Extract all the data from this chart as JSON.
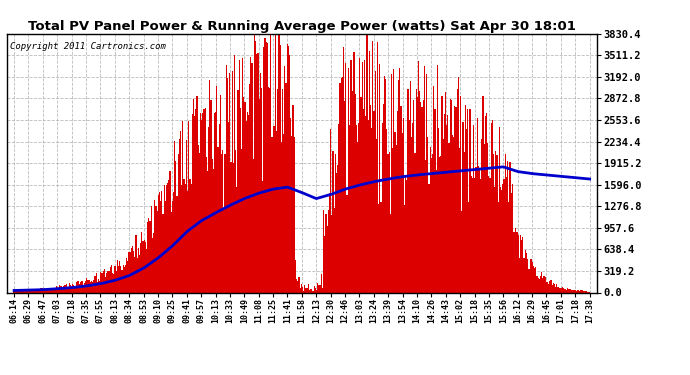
{
  "title": "Total PV Panel Power & Running Average Power (watts) Sat Apr 30 18:01",
  "copyright": "Copyright 2011 Cartronics.com",
  "background_color": "#ffffff",
  "plot_bg_color": "#ffffff",
  "grid_color": "#aaaaaa",
  "ytick_labels": [
    "0.0",
    "319.2",
    "638.4",
    "957.6",
    "1276.8",
    "1596.0",
    "1915.2",
    "2234.4",
    "2553.6",
    "2872.8",
    "3192.0",
    "3511.2",
    "3830.4"
  ],
  "ytick_values": [
    0.0,
    319.2,
    638.4,
    957.6,
    1276.8,
    1596.0,
    1915.2,
    2234.4,
    2553.6,
    2872.8,
    3192.0,
    3511.2,
    3830.4
  ],
  "ymax": 3830.4,
  "ymin": 0.0,
  "bar_color": "#dd0000",
  "avg_color": "#0000cc",
  "avg_linewidth": 2.0,
  "xtick_labels": [
    "06:14",
    "06:29",
    "06:47",
    "07:03",
    "07:18",
    "07:35",
    "07:55",
    "08:13",
    "08:34",
    "08:53",
    "09:10",
    "09:25",
    "09:41",
    "09:57",
    "10:13",
    "10:33",
    "10:49",
    "11:08",
    "11:25",
    "11:41",
    "11:58",
    "12:13",
    "12:30",
    "12:46",
    "13:03",
    "13:24",
    "13:39",
    "13:54",
    "14:10",
    "14:26",
    "14:43",
    "15:02",
    "15:18",
    "15:35",
    "15:56",
    "16:12",
    "16:29",
    "16:45",
    "17:01",
    "17:18",
    "17:38"
  ],
  "pv_envelope": [
    30,
    45,
    60,
    90,
    130,
    180,
    280,
    420,
    600,
    900,
    1400,
    1900,
    2400,
    2700,
    2900,
    3100,
    3300,
    3500,
    3700,
    3600,
    800,
    300,
    2800,
    3200,
    3400,
    3300,
    3200,
    3100,
    3000,
    2950,
    2900,
    2800,
    2600,
    2500,
    2400,
    900,
    400,
    200,
    80,
    40,
    15
  ],
  "avg_values": [
    30,
    35,
    42,
    55,
    72,
    95,
    130,
    180,
    250,
    360,
    510,
    690,
    900,
    1060,
    1180,
    1290,
    1390,
    1470,
    1530,
    1560,
    1480,
    1390,
    1450,
    1530,
    1590,
    1640,
    1680,
    1715,
    1740,
    1760,
    1780,
    1800,
    1820,
    1840,
    1860,
    1790,
    1760,
    1740,
    1720,
    1700,
    1680
  ]
}
